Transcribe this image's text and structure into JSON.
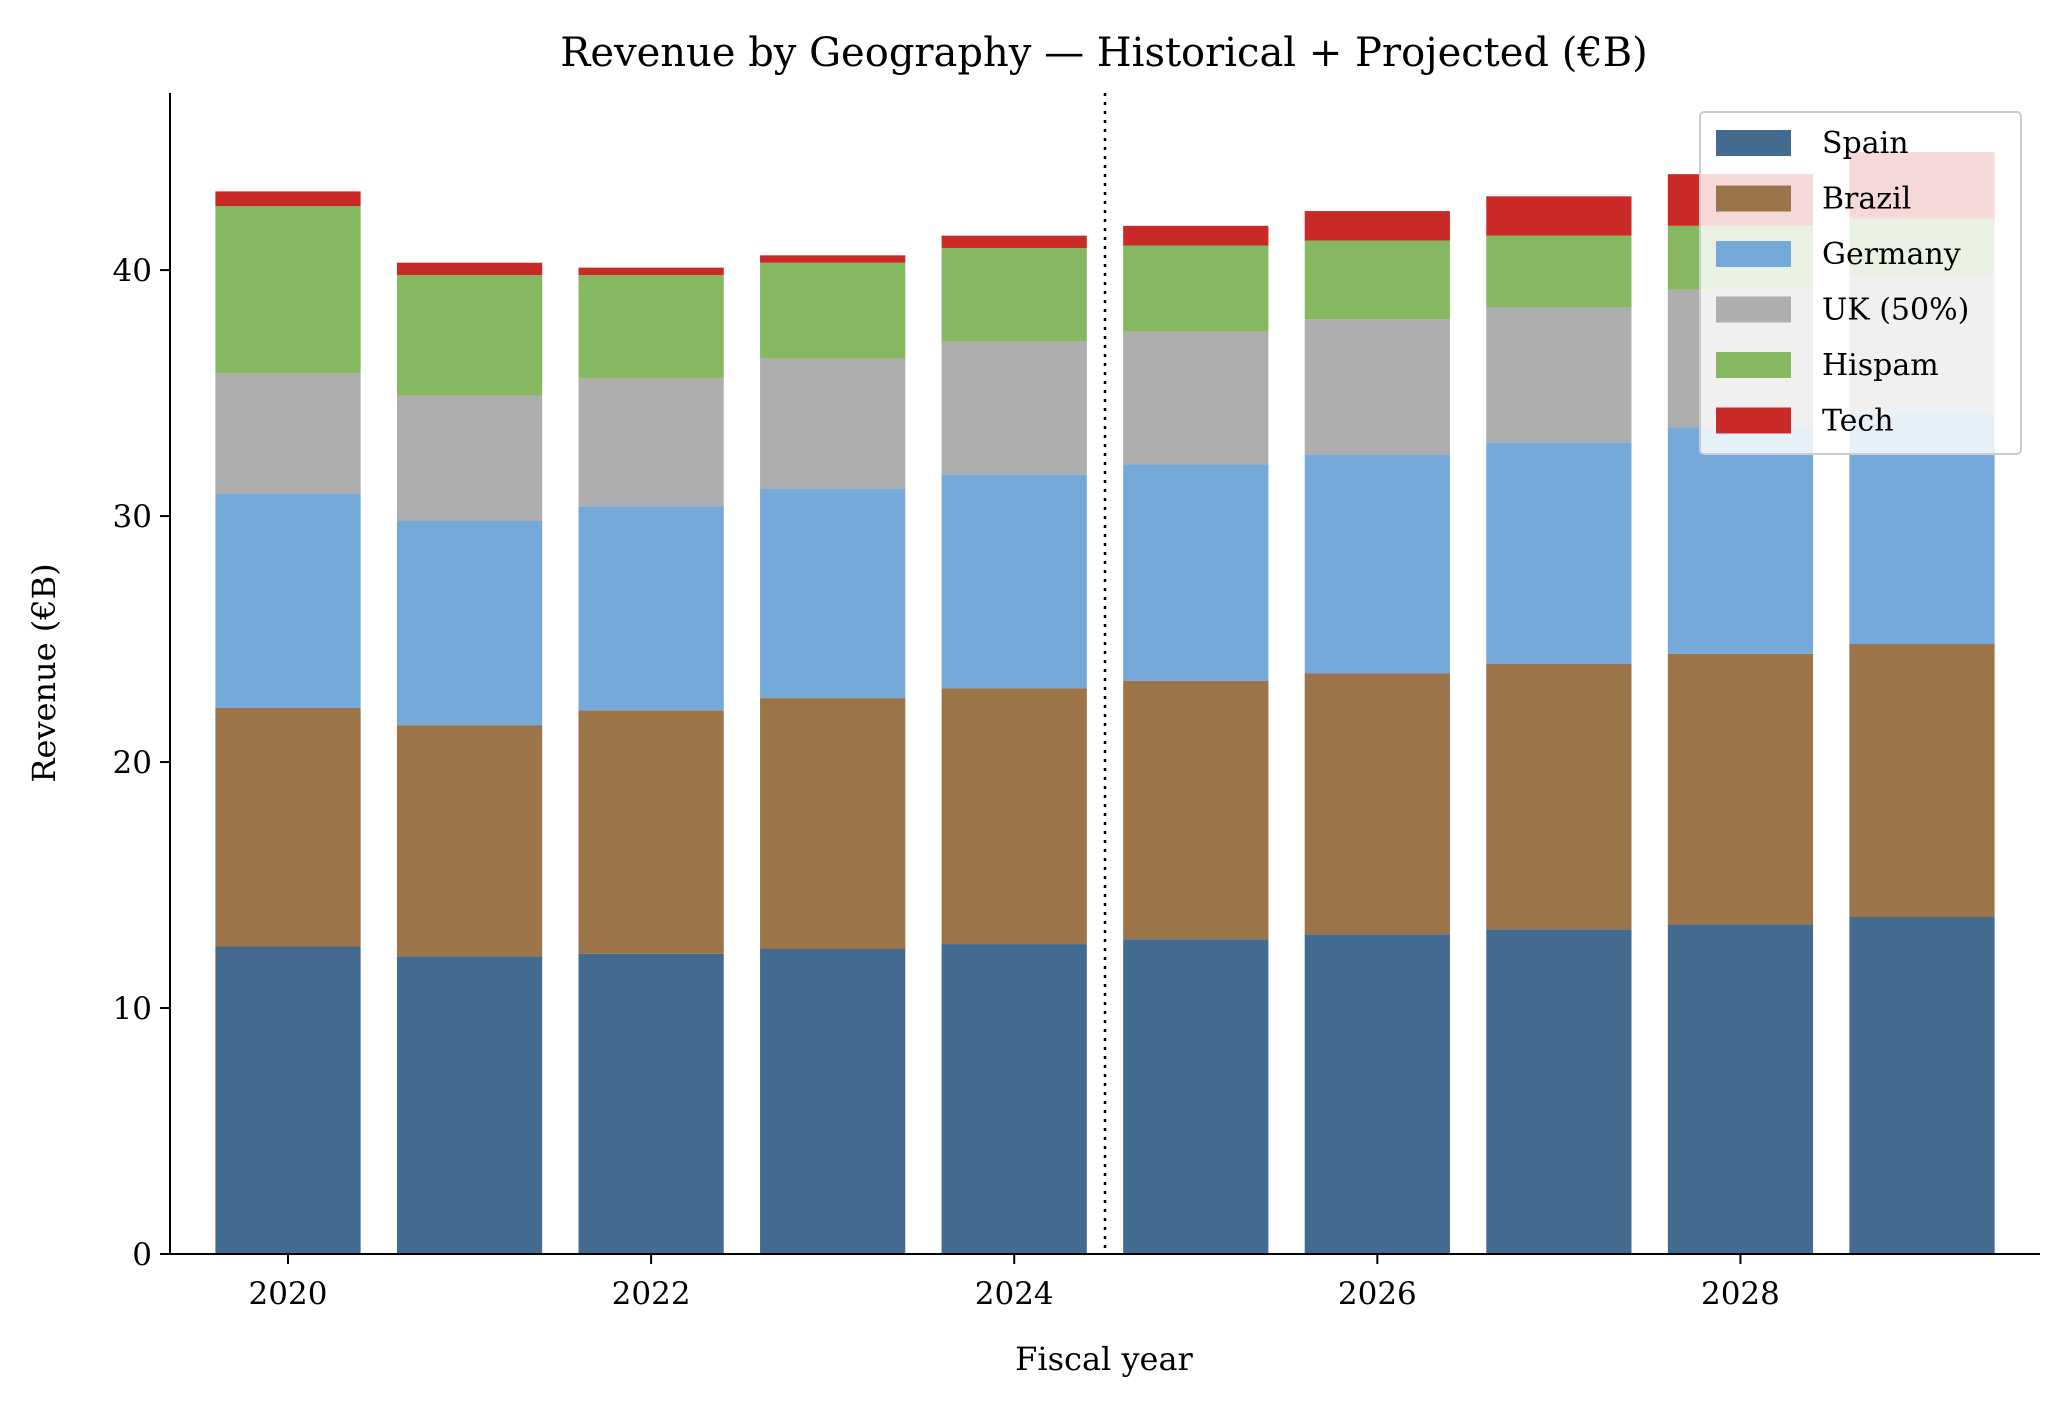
{
  "chart_data": {
    "type": "bar",
    "stacked": true,
    "title": "Revenue by Geography — Historical + Projected (€B)",
    "xlabel": "Fiscal year",
    "ylabel": "Revenue (€B)",
    "x": [
      2020,
      2021,
      2022,
      2023,
      2024,
      2025,
      2026,
      2027,
      2028,
      2029
    ],
    "x_ticks": [
      "2020",
      "2022",
      "2024",
      "2026",
      "2028"
    ],
    "y_ticks": [
      "0",
      "10",
      "20",
      "30",
      "40"
    ],
    "ylim": [
      0,
      47.2
    ],
    "xlim": [
      2019.35,
      2029.65
    ],
    "divider_x": 2024.5,
    "divider_style": "dotted",
    "grid": false,
    "legend_position": "top-right",
    "series": [
      {
        "name": "Spain",
        "color": "#436a8f",
        "values": [
          12.5,
          12.1,
          12.2,
          12.4,
          12.6,
          12.8,
          13.0,
          13.2,
          13.4,
          13.7
        ]
      },
      {
        "name": "Brazil",
        "color": "#9b744a",
        "values": [
          9.7,
          9.4,
          9.9,
          10.2,
          10.4,
          10.5,
          10.6,
          10.8,
          11.0,
          11.1
        ]
      },
      {
        "name": "Germany",
        "color": "#74a9da",
        "values": [
          8.7,
          8.3,
          8.3,
          8.5,
          8.7,
          8.8,
          8.9,
          9.0,
          9.2,
          9.4
        ]
      },
      {
        "name": "UK (50%)",
        "color": "#aeaeae",
        "values": [
          4.9,
          5.1,
          5.2,
          5.3,
          5.4,
          5.4,
          5.5,
          5.5,
          5.6,
          5.6
        ]
      },
      {
        "name": "Hispam",
        "color": "#86b862",
        "values": [
          6.8,
          4.9,
          4.2,
          3.9,
          3.8,
          3.5,
          3.2,
          2.9,
          2.6,
          2.3
        ]
      },
      {
        "name": "Tech",
        "color": "#c92a27",
        "values": [
          0.6,
          0.5,
          0.3,
          0.3,
          0.5,
          0.8,
          1.2,
          1.6,
          2.1,
          2.7
        ]
      }
    ]
  }
}
